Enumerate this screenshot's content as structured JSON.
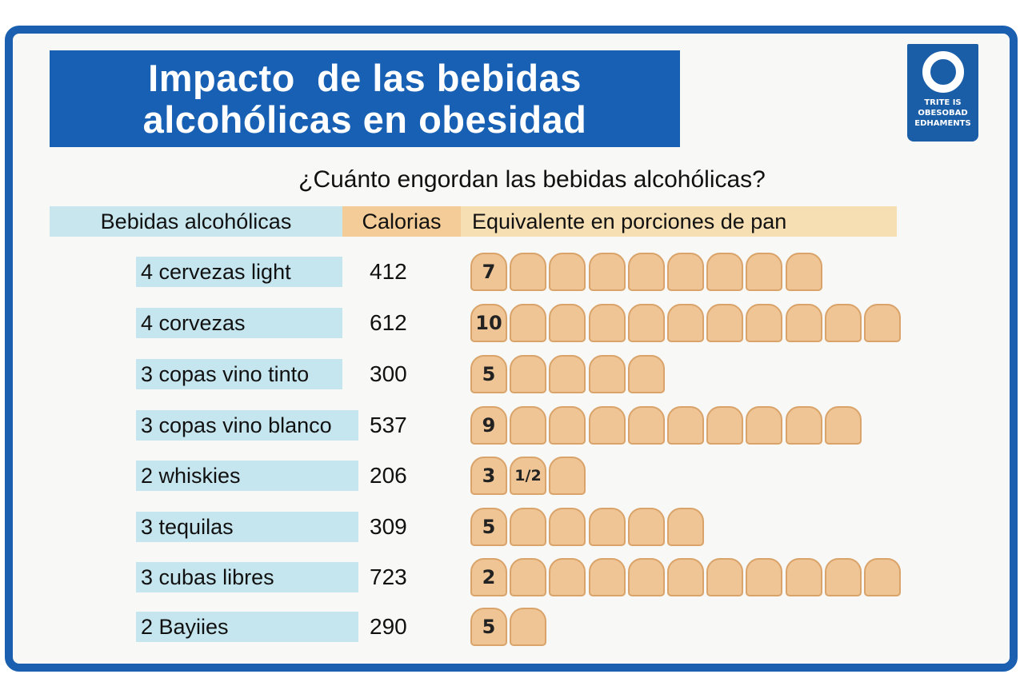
{
  "title": {
    "line1": "Impacto  de las bebidas",
    "line2": "alcohólicas en obesidad"
  },
  "logo": {
    "icon": "ring-logo-icon",
    "lines": [
      "TRITE IS",
      "OBESOBAD",
      "EDHAMENTS"
    ]
  },
  "subtitle": "¿Cuánto engordan las bebidas alcohólicas?",
  "headers": {
    "drinks": "Bebidas alcohólicas",
    "calories": "Calorias",
    "equivalent": "Equivalente en porciones de pan"
  },
  "colors": {
    "brand_blue": "#1860b4",
    "drink_cell": "#c6e6ef",
    "calorie_header": "#f3cc97",
    "bread": "#efc596"
  },
  "rows": [
    {
      "drink": "4 cervezas light",
      "calories": "412",
      "label": "7",
      "extra": "",
      "blank_slices": 8
    },
    {
      "drink": "4 corvezas",
      "calories": "612",
      "label": "10",
      "extra": "",
      "blank_slices": 10
    },
    {
      "drink": "3 copas vino tinto",
      "calories": "300",
      "label": "5",
      "extra": "",
      "blank_slices": 4
    },
    {
      "drink": "3 copas vino blanco",
      "calories": "537",
      "label": "9",
      "extra": "",
      "blank_slices": 9
    },
    {
      "drink": "2 whiskies",
      "calories": "206",
      "label": "3",
      "extra": "1/2",
      "blank_slices": 1
    },
    {
      "drink": "3 tequilas",
      "calories": "309",
      "label": "5",
      "extra": "",
      "blank_slices": 5
    },
    {
      "drink": "3 cubas libres",
      "calories": "723",
      "label": "2",
      "extra": "",
      "blank_slices": 10
    },
    {
      "drink": "2 Bayiies",
      "calories": "290",
      "label": "5",
      "extra": "",
      "blank_slices": 1
    }
  ]
}
